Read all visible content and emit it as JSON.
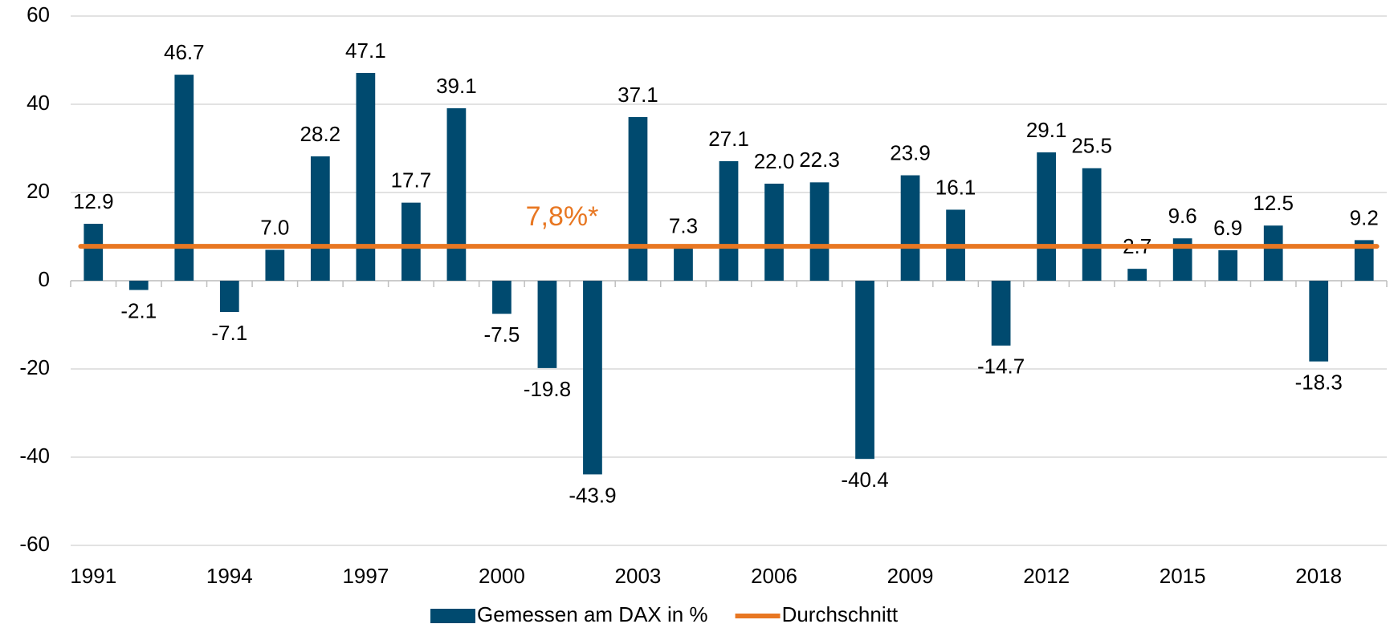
{
  "chart_data": {
    "type": "bar",
    "annotation": "7,8%*",
    "categories": [
      "1991",
      null,
      null,
      "1994",
      null,
      null,
      "1997",
      null,
      null,
      "2000",
      null,
      null,
      "2003",
      null,
      null,
      "2006",
      null,
      null,
      "2009",
      null,
      null,
      "2012",
      null,
      null,
      "2015",
      null,
      null,
      "2018",
      null
    ],
    "series": [
      {
        "name": "Gemessen am DAX in %",
        "color": "#004a6f",
        "values": [
          12.9,
          -2.1,
          46.7,
          -7.1,
          7.0,
          28.2,
          47.1,
          17.7,
          39.1,
          -7.5,
          -19.8,
          -43.9,
          37.1,
          7.3,
          27.1,
          22.0,
          22.3,
          -40.4,
          23.9,
          16.1,
          -14.7,
          29.1,
          25.5,
          2.7,
          9.6,
          6.9,
          12.5,
          -18.3,
          9.2
        ],
        "value_labels": [
          "12.9",
          "-2.1",
          "46.7",
          "-7.1",
          "7.0",
          "28.2",
          "47.1",
          "17.7",
          "39.1",
          "-7.5",
          "-19.8",
          "-43.9",
          "37.1",
          "7.3",
          "27.1",
          "22.0",
          "22.3",
          "-40.4",
          "23.9",
          "16.1",
          "-14.7",
          "29.1",
          "25.5",
          "2.7",
          "9.6",
          "6.9",
          "12.5",
          "-18.3",
          "9.2"
        ]
      },
      {
        "name": "Durchschnitt",
        "color": "#e87722",
        "kind": "line",
        "values": [
          7.8,
          7.8,
          7.8,
          7.8,
          7.8,
          7.8,
          7.8,
          7.8,
          7.8,
          7.8,
          7.8,
          7.8,
          7.8,
          7.8,
          7.8,
          7.8,
          7.8,
          7.8,
          7.8,
          7.8,
          7.8,
          7.8,
          7.8,
          7.8,
          7.8,
          7.8,
          7.8,
          7.8,
          7.8
        ]
      }
    ],
    "ylim": [
      -60,
      60
    ],
    "yticks": [
      -60,
      -40,
      -20,
      0,
      20,
      40,
      60
    ],
    "grid": true,
    "legend": "bottom"
  }
}
